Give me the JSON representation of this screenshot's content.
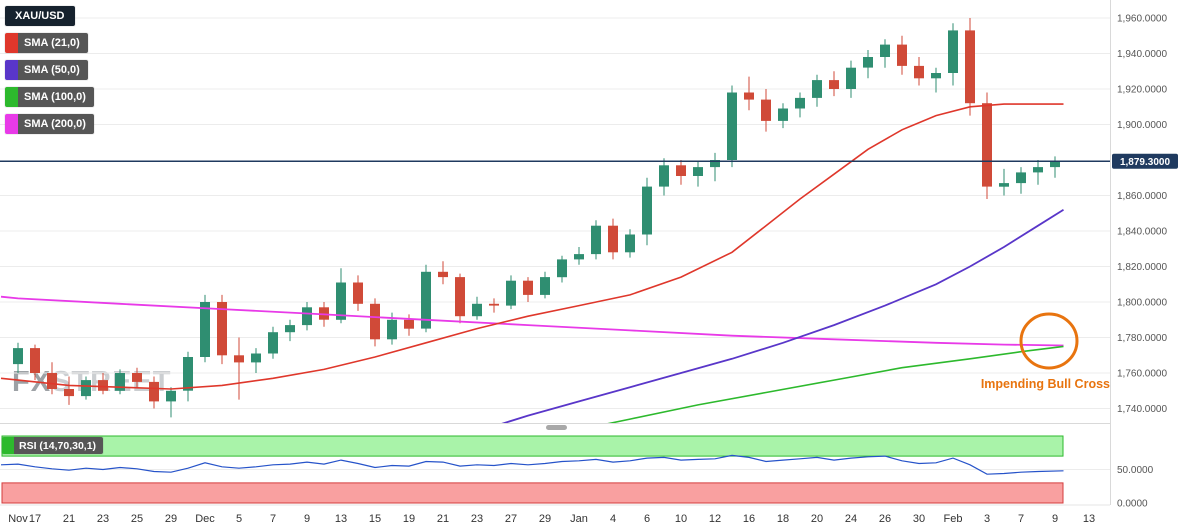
{
  "legend": {
    "symbol_bg": "#16222e",
    "indicators": [
      {
        "label": "SMA (21,0)",
        "color": "#df372b"
      },
      {
        "label": "SMA (50,0)",
        "color": "#5936c9"
      },
      {
        "label": "SMA (100,0)",
        "color": "#2db92d"
      },
      {
        "label": "SMA (200,0)",
        "color": "#e83ae8"
      }
    ]
  },
  "annotation": {
    "text": "Impending Bull Cross",
    "color": "#e8740f"
  },
  "watermark": {
    "part1": "FX",
    "part2": "STREET"
  },
  "chart_data": [
    {
      "id": "price",
      "type": "candlestick",
      "title": "XAU/USD",
      "timeframe_note": "daily candles, Nov to Feb",
      "y_range": [
        1730,
        1965
      ],
      "grid": true,
      "y_ticks": [
        {
          "p": 1960,
          "label": "1,960.0000"
        },
        {
          "p": 1940,
          "label": "1,940.0000"
        },
        {
          "p": 1920,
          "label": "1,920.0000"
        },
        {
          "p": 1900,
          "label": "1,900.0000"
        },
        {
          "p": 1860,
          "label": "1,860.0000"
        },
        {
          "p": 1840,
          "label": "1,840.0000"
        },
        {
          "p": 1820,
          "label": "1,820.0000"
        },
        {
          "p": 1800,
          "label": "1,800.0000"
        },
        {
          "p": 1780,
          "label": "1,780.0000"
        },
        {
          "p": 1760,
          "label": "1,760.0000"
        },
        {
          "p": 1740,
          "label": "1,740.0000"
        }
      ],
      "x_ticks": [
        {
          "label": "Nov",
          "i": 0
        },
        {
          "label": "17",
          "i": 1
        },
        {
          "label": "21",
          "i": 3
        },
        {
          "label": "23",
          "i": 5
        },
        {
          "label": "25",
          "i": 7
        },
        {
          "label": "29",
          "i": 9
        },
        {
          "label": "Dec",
          "i": 11
        },
        {
          "label": "5",
          "i": 13
        },
        {
          "label": "7",
          "i": 15
        },
        {
          "label": "9",
          "i": 17
        },
        {
          "label": "13",
          "i": 19
        },
        {
          "label": "15",
          "i": 21
        },
        {
          "label": "19",
          "i": 23
        },
        {
          "label": "21",
          "i": 25
        },
        {
          "label": "23",
          "i": 27
        },
        {
          "label": "27",
          "i": 29
        },
        {
          "label": "29",
          "i": 31
        },
        {
          "label": "Jan",
          "i": 33
        },
        {
          "label": "4",
          "i": 35
        },
        {
          "label": "6",
          "i": 37
        },
        {
          "label": "10",
          "i": 39
        },
        {
          "label": "12",
          "i": 41
        },
        {
          "label": "16",
          "i": 43
        },
        {
          "label": "18",
          "i": 45
        },
        {
          "label": "20",
          "i": 47
        },
        {
          "label": "24",
          "i": 49
        },
        {
          "label": "26",
          "i": 51
        },
        {
          "label": "30",
          "i": 53
        },
        {
          "label": "Feb",
          "i": 55
        },
        {
          "label": "3",
          "i": 57
        },
        {
          "label": "7",
          "i": 59
        },
        {
          "label": "9",
          "i": 61
        },
        {
          "label": "13",
          "i": 63
        }
      ],
      "colors": {
        "up": "#2f8e71",
        "down": "#d04a38"
      },
      "candles": [
        [
          1765,
          1777,
          1760,
          1774
        ],
        [
          1774,
          1776,
          1756,
          1760
        ],
        [
          1760,
          1766,
          1748,
          1751
        ],
        [
          1751,
          1758,
          1742,
          1747
        ],
        [
          1747,
          1758,
          1745,
          1756
        ],
        [
          1756,
          1760,
          1748,
          1750
        ],
        [
          1750,
          1762,
          1748,
          1760
        ],
        [
          1760,
          1763,
          1752,
          1755
        ],
        [
          1755,
          1758,
          1740,
          1744
        ],
        [
          1744,
          1752,
          1735,
          1750
        ],
        [
          1750,
          1772,
          1744,
          1769
        ],
        [
          1769,
          1804,
          1766,
          1800
        ],
        [
          1800,
          1804,
          1765,
          1770
        ],
        [
          1770,
          1780,
          1745,
          1766
        ],
        [
          1766,
          1774,
          1760,
          1771
        ],
        [
          1771,
          1786,
          1768,
          1783
        ],
        [
          1783,
          1790,
          1778,
          1787
        ],
        [
          1787,
          1800,
          1784,
          1797
        ],
        [
          1797,
          1800,
          1786,
          1790
        ],
        [
          1790,
          1819,
          1788,
          1811
        ],
        [
          1811,
          1815,
          1795,
          1799
        ],
        [
          1799,
          1802,
          1775,
          1779
        ],
        [
          1779,
          1794,
          1776,
          1790
        ],
        [
          1790,
          1793,
          1781,
          1785
        ],
        [
          1785,
          1821,
          1783,
          1817
        ],
        [
          1817,
          1823,
          1810,
          1814
        ],
        [
          1814,
          1816,
          1788,
          1792
        ],
        [
          1792,
          1803,
          1790,
          1799
        ],
        [
          1799,
          1802,
          1794,
          1798
        ],
        [
          1798,
          1815,
          1796,
          1812
        ],
        [
          1812,
          1814,
          1800,
          1804
        ],
        [
          1804,
          1817,
          1802,
          1814
        ],
        [
          1814,
          1826,
          1811,
          1824
        ],
        [
          1824,
          1831,
          1821,
          1827
        ],
        [
          1827,
          1846,
          1824,
          1843
        ],
        [
          1843,
          1847,
          1824,
          1828
        ],
        [
          1828,
          1841,
          1825,
          1838
        ],
        [
          1838,
          1870,
          1832,
          1865
        ],
        [
          1865,
          1881,
          1860,
          1877
        ],
        [
          1877,
          1880,
          1866,
          1871
        ],
        [
          1871,
          1879,
          1865,
          1876
        ],
        [
          1876,
          1884,
          1868,
          1880
        ],
        [
          1880,
          1922,
          1876,
          1918
        ],
        [
          1918,
          1927,
          1908,
          1914
        ],
        [
          1914,
          1920,
          1896,
          1902
        ],
        [
          1902,
          1912,
          1898,
          1909
        ],
        [
          1909,
          1918,
          1904,
          1915
        ],
        [
          1915,
          1928,
          1910,
          1925
        ],
        [
          1925,
          1930,
          1916,
          1920
        ],
        [
          1920,
          1936,
          1915,
          1932
        ],
        [
          1932,
          1942,
          1926,
          1938
        ],
        [
          1938,
          1948,
          1932,
          1945
        ],
        [
          1945,
          1950,
          1928,
          1933
        ],
        [
          1933,
          1938,
          1922,
          1926
        ],
        [
          1926,
          1932,
          1918,
          1929
        ],
        [
          1929,
          1957,
          1922,
          1953
        ],
        [
          1953,
          1960,
          1905,
          1912
        ],
        [
          1912,
          1918,
          1858,
          1865
        ],
        [
          1865,
          1875,
          1860,
          1867
        ],
        [
          1867,
          1876,
          1861,
          1873
        ],
        [
          1873,
          1880,
          1866,
          1876
        ],
        [
          1876,
          1882,
          1870,
          1879.3
        ]
      ],
      "overlays": {
        "sma21": {
          "color": "#df372b",
          "width": 1.6,
          "points": [
            [
              -1,
              1757
            ],
            [
              0,
              1756
            ],
            [
              3,
              1753
            ],
            [
              6,
              1752
            ],
            [
              9,
              1751
            ],
            [
              12,
              1753
            ],
            [
              15,
              1757
            ],
            [
              18,
              1762
            ],
            [
              21,
              1769
            ],
            [
              24,
              1777
            ],
            [
              27,
              1785
            ],
            [
              30,
              1792
            ],
            [
              33,
              1798
            ],
            [
              36,
              1804
            ],
            [
              39,
              1814
            ],
            [
              42,
              1828
            ],
            [
              44,
              1843
            ],
            [
              46,
              1858
            ],
            [
              48,
              1872
            ],
            [
              50,
              1886
            ],
            [
              52,
              1897
            ],
            [
              54,
              1905
            ],
            [
              56,
              1910
            ],
            [
              58,
              1911.5
            ],
            [
              61.5,
              1911.5
            ]
          ]
        },
        "sma50": {
          "color": "#5936c9",
          "width": 1.8,
          "points": [
            [
              27,
              1727
            ],
            [
              30,
              1736
            ],
            [
              33,
              1744
            ],
            [
              36,
              1752
            ],
            [
              39,
              1760
            ],
            [
              42,
              1768
            ],
            [
              45,
              1777
            ],
            [
              48,
              1787
            ],
            [
              51,
              1798
            ],
            [
              54,
              1810
            ],
            [
              56,
              1820
            ],
            [
              58,
              1831
            ],
            [
              60,
              1843
            ],
            [
              61.5,
              1852
            ]
          ]
        },
        "sma100": {
          "color": "#2db92d",
          "width": 1.6,
          "points": [
            [
              32,
              1726
            ],
            [
              36,
              1734
            ],
            [
              40,
              1742
            ],
            [
              44,
              1749
            ],
            [
              48,
              1756
            ],
            [
              52,
              1763
            ],
            [
              56,
              1768
            ],
            [
              59,
              1772
            ],
            [
              61.5,
              1775
            ]
          ]
        },
        "sma200": {
          "color": "#e83ae8",
          "width": 1.8,
          "points": [
            [
              -1,
              1803
            ],
            [
              0,
              1802
            ],
            [
              6,
              1799
            ],
            [
              12,
              1796
            ],
            [
              18,
              1793
            ],
            [
              24,
              1790
            ],
            [
              30,
              1787
            ],
            [
              36,
              1784
            ],
            [
              42,
              1781
            ],
            [
              48,
              1779
            ],
            [
              54,
              1777
            ],
            [
              58,
              1776
            ],
            [
              61.5,
              1775.5
            ]
          ]
        }
      },
      "price_line": {
        "value": 1879.3,
        "label": "1,879.3000",
        "color": "#1f3a5f"
      }
    },
    {
      "id": "rsi",
      "type": "line",
      "title": "RSI (14,70,30,1)",
      "y_range": [
        0,
        100
      ],
      "y_ticks": [
        {
          "v": 50,
          "label": "50.0000"
        },
        {
          "v": 0,
          "label": "0.0000"
        }
      ],
      "bands": {
        "overbought": [
          70,
          100
        ],
        "oversold": [
          0,
          30
        ]
      },
      "colors": {
        "line": "#2653c9",
        "badge": "#2db92d",
        "overbought_fill": "#a9f3a9",
        "overbought_stroke": "#2db92d",
        "oversold_fill": "#f9a0a0",
        "oversold_stroke": "#d43c3c"
      },
      "values": [
        [
          -1,
          57
        ],
        [
          0,
          58
        ],
        [
          1,
          54
        ],
        [
          2,
          51
        ],
        [
          3,
          49
        ],
        [
          4,
          52
        ],
        [
          5,
          50
        ],
        [
          6,
          53
        ],
        [
          7,
          51
        ],
        [
          8,
          47
        ],
        [
          9,
          46
        ],
        [
          10,
          52
        ],
        [
          11,
          60
        ],
        [
          12,
          54
        ],
        [
          13,
          52
        ],
        [
          14,
          54
        ],
        [
          15,
          57
        ],
        [
          16,
          58
        ],
        [
          17,
          61
        ],
        [
          18,
          58
        ],
        [
          19,
          64
        ],
        [
          20,
          59
        ],
        [
          21,
          53
        ],
        [
          22,
          56
        ],
        [
          23,
          55
        ],
        [
          24,
          62
        ],
        [
          25,
          61
        ],
        [
          26,
          55
        ],
        [
          27,
          57
        ],
        [
          28,
          56
        ],
        [
          29,
          59
        ],
        [
          30,
          57
        ],
        [
          31,
          59
        ],
        [
          32,
          62
        ],
        [
          33,
          63
        ],
        [
          34,
          65
        ],
        [
          35,
          61
        ],
        [
          36,
          63
        ],
        [
          37,
          67
        ],
        [
          38,
          68
        ],
        [
          39,
          64
        ],
        [
          40,
          65
        ],
        [
          41,
          66
        ],
        [
          42,
          71
        ],
        [
          43,
          68
        ],
        [
          44,
          62
        ],
        [
          45,
          64
        ],
        [
          46,
          66
        ],
        [
          47,
          68
        ],
        [
          48,
          64
        ],
        [
          49,
          67
        ],
        [
          50,
          69
        ],
        [
          51,
          70
        ],
        [
          52,
          63
        ],
        [
          53,
          59
        ],
        [
          54,
          60
        ],
        [
          55,
          67
        ],
        [
          56,
          57
        ],
        [
          57,
          43
        ],
        [
          58,
          44
        ],
        [
          59,
          46
        ],
        [
          60,
          47
        ],
        [
          61.5,
          48
        ]
      ]
    }
  ]
}
